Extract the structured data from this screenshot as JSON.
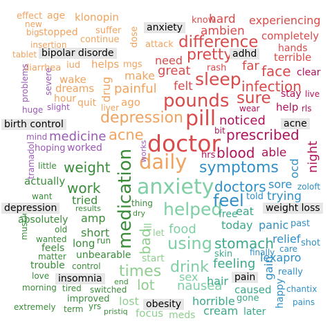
{
  "words": [
    {
      "text": "effect",
      "color": "#f0a35e"
    },
    {
      "text": "age",
      "color": "#f0a35e"
    },
    {
      "text": "klonopin",
      "color": "#f0a35e"
    },
    {
      "text": "new",
      "color": "#f0a35e"
    },
    {
      "text": "big",
      "color": "#f0a35e"
    },
    {
      "text": "stopped",
      "color": "#f0a35e"
    },
    {
      "text": "suffer",
      "color": "#f0a35e"
    },
    {
      "text": "continue",
      "color": "#f0a35e"
    },
    {
      "text": "insertion",
      "color": "#f0a35e"
    },
    {
      "text": "tablet",
      "color": "#f0a35e"
    },
    {
      "text": "diarrhea",
      "color": "#f0a35e"
    },
    {
      "text": "iud",
      "color": "#f0a35e"
    },
    {
      "text": "helps",
      "color": "#f0a35e"
    },
    {
      "text": "mgs",
      "color": "#f0a35e"
    },
    {
      "text": "dose",
      "color": "#f0a35e"
    },
    {
      "text": "attack",
      "color": "#f0a35e"
    },
    {
      "text": "wake",
      "color": "#f0a35e"
    },
    {
      "text": "dreams",
      "color": "#f0a35e"
    },
    {
      "text": "drug",
      "color": "#f0a35e"
    },
    {
      "text": "painful",
      "color": "#f0a35e"
    },
    {
      "text": "hour",
      "color": "#f0a35e"
    },
    {
      "text": "quit",
      "color": "#f0a35e"
    },
    {
      "text": "ago",
      "color": "#f0a35e"
    },
    {
      "text": "liver",
      "color": "#f0a35e"
    },
    {
      "text": "depression",
      "color": "#f0a35e"
    },
    {
      "text": "acne",
      "color": "#f0a35e"
    },
    {
      "text": "daily",
      "color": "#f0a35e"
    },
    {
      "text": "make",
      "color": "#f0a35e"
    },
    {
      "text": "need",
      "color": "#d94a4a"
    },
    {
      "text": "great",
      "color": "#d94a4a"
    },
    {
      "text": "know",
      "color": "#d94a4a"
    },
    {
      "text": "hard",
      "color": "#d94a4a"
    },
    {
      "text": "experiencing",
      "color": "#d94a4a"
    },
    {
      "text": "ambien",
      "color": "#d94a4a"
    },
    {
      "text": "completely",
      "color": "#d94a4a"
    },
    {
      "text": "difference",
      "color": "#d94a4a"
    },
    {
      "text": "hands",
      "color": "#d94a4a"
    },
    {
      "text": "pretty",
      "color": "#d94a4a"
    },
    {
      "text": "terrible",
      "color": "#d94a4a"
    },
    {
      "text": "rash",
      "color": "#d94a4a"
    },
    {
      "text": "far",
      "color": "#d94a4a"
    },
    {
      "text": "face",
      "color": "#d94a4a"
    },
    {
      "text": "sleep",
      "color": "#d94a4a"
    },
    {
      "text": "felt",
      "color": "#d94a4a"
    },
    {
      "text": "infection",
      "color": "#d94a4a"
    },
    {
      "text": "pounds",
      "color": "#d94a4a"
    },
    {
      "text": "sure",
      "color": "#d94a4a"
    },
    {
      "text": "pill",
      "color": "#d94a4a"
    },
    {
      "text": "doctor",
      "color": "#d94a4a"
    },
    {
      "text": "clear",
      "color": "#b0125b"
    },
    {
      "text": "stay",
      "color": "#b0125b"
    },
    {
      "text": "live",
      "color": "#b0125b"
    },
    {
      "text": "help",
      "color": "#b0125b"
    },
    {
      "text": "rls",
      "color": "#b0125b"
    },
    {
      "text": "wear",
      "color": "#b0125b"
    },
    {
      "text": "noticed",
      "color": "#b0125b"
    },
    {
      "text": "bit",
      "color": "#b0125b"
    },
    {
      "text": "prescribed",
      "color": "#b0125b"
    },
    {
      "text": "blood",
      "color": "#b0125b"
    },
    {
      "text": "hrs",
      "color": "#b0125b"
    },
    {
      "text": "able",
      "color": "#b0125b"
    },
    {
      "text": "night",
      "color": "#b0125b"
    },
    {
      "text": "problems",
      "color": "#9b59b6"
    },
    {
      "text": "severe",
      "color": "#9b59b6"
    },
    {
      "text": "huge",
      "color": "#9b59b6"
    },
    {
      "text": "slight",
      "color": "#9b59b6"
    },
    {
      "text": "mind",
      "color": "#9b59b6"
    },
    {
      "text": "medicine",
      "color": "#9b59b6"
    },
    {
      "text": "hoping",
      "color": "#9b59b6"
    },
    {
      "text": "worked",
      "color": "#9b59b6"
    },
    {
      "text": "tramadol",
      "color": "#9b59b6"
    },
    {
      "text": "works",
      "color": "#9b59b6"
    },
    {
      "text": "little",
      "color": "#3a8c3a"
    },
    {
      "text": "weight",
      "color": "#3a8c3a"
    },
    {
      "text": "actually",
      "color": "#3a8c3a"
    },
    {
      "text": "work",
      "color": "#3a8c3a"
    },
    {
      "text": "want",
      "color": "#3a8c3a"
    },
    {
      "text": "tried",
      "color": "#3a8c3a"
    },
    {
      "text": "results",
      "color": "#3a8c3a"
    },
    {
      "text": "absolutely",
      "color": "#3a8c3a"
    },
    {
      "text": "amp",
      "color": "#3a8c3a"
    },
    {
      "text": "old",
      "color": "#3a8c3a"
    },
    {
      "text": "wanted",
      "color": "#3a8c3a"
    },
    {
      "text": "short",
      "color": "#3a8c3a"
    },
    {
      "text": "long",
      "color": "#3a8c3a"
    },
    {
      "text": "run",
      "color": "#3a8c3a"
    },
    {
      "text": "feels",
      "color": "#3a8c3a"
    },
    {
      "text": "matter",
      "color": "#3a8c3a"
    },
    {
      "text": "muscle",
      "color": "#3a8c3a"
    },
    {
      "text": "unbearable",
      "color": "#3a8c3a"
    },
    {
      "text": "trouble",
      "color": "#3a8c3a"
    },
    {
      "text": "control",
      "color": "#3a8c3a"
    },
    {
      "text": "love",
      "color": "#3a8c3a"
    },
    {
      "text": "morning",
      "color": "#3a8c3a"
    },
    {
      "text": "tired",
      "color": "#3a8c3a"
    },
    {
      "text": "switched",
      "color": "#3a8c3a"
    },
    {
      "text": "improved",
      "color": "#3a8c3a"
    },
    {
      "text": "extremely",
      "color": "#3a8c3a"
    },
    {
      "text": "term",
      "color": "#3a8c3a"
    },
    {
      "text": "yrs",
      "color": "#3a8c3a"
    },
    {
      "text": "pristiq",
      "color": "#3a8c3a"
    },
    {
      "text": "medication",
      "color": "#3a8c3a"
    },
    {
      "text": "end",
      "color": "#3a8c3a"
    },
    {
      "text": "thing",
      "color": "#3a8c3a"
    },
    {
      "text": "dry",
      "color": "#3a8c3a"
    },
    {
      "text": "bad",
      "color": "#8fce8f"
    },
    {
      "text": "ill",
      "color": "#8fce8f"
    },
    {
      "text": "let",
      "color": "#8fce8f"
    },
    {
      "text": "start",
      "color": "#8fce8f"
    },
    {
      "text": "times",
      "color": "#8fce8f"
    },
    {
      "text": "lot",
      "color": "#8fce8f"
    },
    {
      "text": "focus",
      "color": "#8fce8f"
    },
    {
      "text": "meds",
      "color": "#8fce8f"
    },
    {
      "text": "lost",
      "color": "#8fce8f"
    },
    {
      "text": "anxiety",
      "color": "#7fcfa5"
    },
    {
      "text": "helped",
      "color": "#7fcfa5"
    },
    {
      "text": "food",
      "color": "#7fcfa5"
    },
    {
      "text": "using",
      "color": "#7fcfa5"
    },
    {
      "text": "drink",
      "color": "#7fcfa5"
    },
    {
      "text": "sex",
      "color": "#7fcfa5"
    },
    {
      "text": "nausea",
      "color": "#7fcfa5"
    },
    {
      "text": "free",
      "color": "#3aa88a"
    },
    {
      "text": "eat",
      "color": "#3aa88a"
    },
    {
      "text": "today",
      "color": "#3aa88a"
    },
    {
      "text": "stomach",
      "color": "#3aa88a"
    },
    {
      "text": "skin",
      "color": "#3aa88a"
    },
    {
      "text": "feeling",
      "color": "#3aa88a"
    },
    {
      "text": "hair",
      "color": "#3aa88a"
    },
    {
      "text": "horrible",
      "color": "#3aa88a"
    },
    {
      "text": "cream",
      "color": "#3aa88a"
    },
    {
      "text": "gone",
      "color": "#3aa88a"
    },
    {
      "text": "caused",
      "color": "#3aa88a"
    },
    {
      "text": "later",
      "color": "#3aa88a"
    },
    {
      "text": "feel",
      "color": "#2f8fc6"
    },
    {
      "text": "told",
      "color": "#2f8fc6"
    },
    {
      "text": "trying",
      "color": "#2f8fc6"
    },
    {
      "text": "symptoms",
      "color": "#2f8fc6"
    },
    {
      "text": "doctors",
      "color": "#2f8fc6"
    },
    {
      "text": "sore",
      "color": "#2f8fc6"
    },
    {
      "text": "zoloft",
      "color": "#2f8fc6"
    },
    {
      "text": "ocd",
      "color": "#2f8fc6"
    },
    {
      "text": "panic",
      "color": "#2f8fc6"
    },
    {
      "text": "past",
      "color": "#2f8fc6"
    },
    {
      "text": "relief",
      "color": "#2f8fc6"
    },
    {
      "text": "care",
      "color": "#2f8fc6"
    },
    {
      "text": "shot",
      "color": "#2f8fc6"
    },
    {
      "text": "finally",
      "color": "#2f8fc6"
    },
    {
      "text": "lexapro",
      "color": "#2f8fc6"
    },
    {
      "text": "gain",
      "color": "#2f8fc6"
    },
    {
      "text": "really",
      "color": "#2f8fc6"
    },
    {
      "text": "happy",
      "color": "#2f8fc6"
    },
    {
      "text": "chantix",
      "color": "#2f8fc6"
    },
    {
      "text": "pains",
      "color": "#2f8fc6"
    }
  ],
  "labels": [
    "anxiety",
    "adhd",
    "bipolar disorde",
    "birth control",
    "acne",
    "depression",
    "weight loss",
    "insomnia",
    "pain",
    "obesity"
  ]
}
